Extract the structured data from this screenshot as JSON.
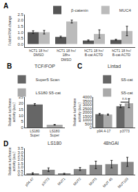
{
  "chart_data": [
    {
      "type": "bar",
      "panel_label": "A",
      "ylabel": "Fold mRNA change",
      "categories": [
        "hCT1 18 h+/\nDMSO",
        "hCT1 18 h+/\n18h+\nDMSO",
        "hCT1 18 h+/\nB-cat ACTD",
        "hCT1 18 h+/\nB-cat ACTD"
      ],
      "series": [
        {
          "name": "β-catenin",
          "color": "#555555",
          "values": [
            1.0,
            0.6,
            0.3,
            0.35
          ],
          "errors": [
            0.12,
            0.07,
            0.05,
            0.06
          ]
        },
        {
          "name": "MUC4",
          "color": "#bbbbbb",
          "values": [
            1.0,
            1.9,
            0.85,
            1.1
          ],
          "errors": [
            0.15,
            0.12,
            0.35,
            0.4
          ]
        }
      ],
      "ylim": [
        -0.25,
        2.5
      ],
      "yticks": [
        {
          "value": 0.0,
          "label": "0.0"
        },
        0.5,
        {
          "value": 1.0,
          "label": "1.0"
        },
        1.5,
        {
          "value": 2.0,
          "label": "2.0"
        },
        2.5
      ],
      "grid": false,
      "legend": "upper right"
    },
    {
      "type": "bar",
      "panel_label": "B",
      "title": "TCF/FOP",
      "ylabel": "Relative luciferase\nactivity (a.u.)",
      "categories": [
        "LS180\nSuper",
        "LS180\nSuper"
      ],
      "series": [
        {
          "name": "Super5 Scan",
          "color": "#666666",
          "values": [
            19.0,
            null
          ],
          "errors": [
            0.7,
            null
          ]
        },
        {
          "name": "LS180 S5-cat",
          "color": "#aaaaaa",
          "values": [
            null,
            2.2
          ],
          "errors": [
            null,
            0.3
          ]
        }
      ],
      "ylim": [
        0,
        25
      ],
      "yticks": [
        0,
        5,
        10,
        15,
        20,
        25
      ],
      "grid": false,
      "legend": "upper right"
    },
    {
      "type": "bar",
      "panel_label": "C",
      "title": "Lintad",
      "ylabel": "Relative luciferase\nactivity (a.u.)",
      "categories": [
        "p94.4-17",
        "p3773"
      ],
      "series": [
        {
          "name": "S5-cat",
          "color": "#666666",
          "values": [
            1750,
            2800
          ],
          "errors": [
            100,
            200
          ]
        },
        {
          "name": "S5-cat",
          "color": "#aaaaaa",
          "values": [
            1700,
            3200
          ],
          "errors": [
            80,
            600
          ]
        }
      ],
      "ylim": [
        0,
        4000
      ],
      "yticks": [
        0,
        500,
        1000,
        1500,
        2000,
        2500,
        3000,
        3500,
        4000
      ],
      "annotations": [
        {
          "text": "n.s.",
          "x": 1,
          "y": 3360,
          "line_y": 3350
        }
      ],
      "grid": false,
      "legend": "upper left"
    },
    {
      "type": "bar",
      "panel_label": "D",
      "title": "LS180",
      "subtitle": "48hGAI",
      "ylabel": "Relative luciferase\nactivity (a.u.)",
      "categories": [
        "p94.47",
        "p3773",
        "MU71",
        "MUT2",
        "MUT5",
        "MUT 45",
        "MUT103"
      ],
      "values": [
        0.15,
        0.65,
        0.1,
        0.75,
        1.3,
        1.4,
        1.7
      ],
      "errors": [
        0.1,
        0.25,
        0.08,
        0.2,
        0.5,
        0.5,
        0.6
      ],
      "color": "#888888",
      "ylim": [
        0,
        3.5
      ],
      "yticks": [
        {
          "value": 0.0,
          "label": "0.0"
        },
        0.5,
        {
          "value": 1.0,
          "label": "1.0"
        },
        1.5,
        {
          "value": 2.0,
          "label": "2.0"
        },
        2.5,
        {
          "value": 3.0,
          "label": "3.0"
        },
        3.5
      ],
      "grid": false,
      "legend": false
    }
  ]
}
